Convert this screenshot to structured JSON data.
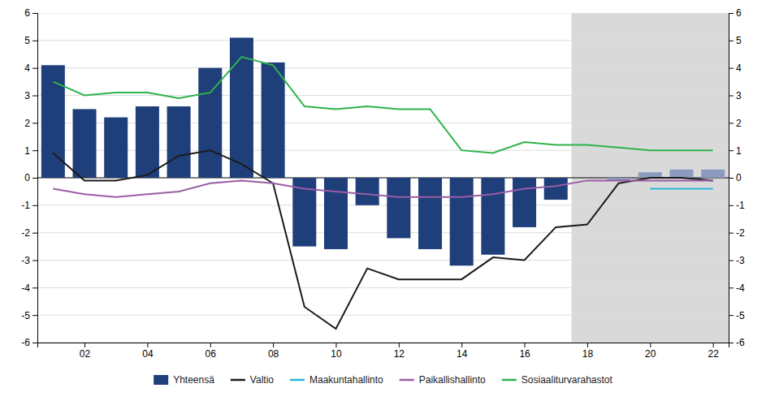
{
  "chart_data": {
    "type": "bar",
    "x": [
      2001,
      2002,
      2003,
      2004,
      2005,
      2006,
      2007,
      2008,
      2009,
      2010,
      2011,
      2012,
      2013,
      2014,
      2015,
      2016,
      2017,
      2018,
      2019,
      2020,
      2021,
      2022
    ],
    "xlim": [
      2000.5,
      2022.5
    ],
    "xticks": [
      {
        "value": 2002,
        "label": "02"
      },
      {
        "value": 2004,
        "label": "04"
      },
      {
        "value": 2006,
        "label": "06"
      },
      {
        "value": 2008,
        "label": "08"
      },
      {
        "value": 2010,
        "label": "10"
      },
      {
        "value": 2012,
        "label": "12"
      },
      {
        "value": 2014,
        "label": "14"
      },
      {
        "value": 2016,
        "label": "16"
      },
      {
        "value": 2018,
        "label": "18"
      },
      {
        "value": 2020,
        "label": "20"
      },
      {
        "value": 2022,
        "label": "22"
      }
    ],
    "ylim": [
      -6,
      6
    ],
    "yticks": [
      -6,
      -5,
      -4,
      -3,
      -2,
      -1,
      0,
      1,
      2,
      3,
      4,
      5,
      6
    ],
    "y2lim": [
      -6,
      6
    ],
    "y2ticks": [
      -6,
      -5,
      -4,
      -3,
      -2,
      -1,
      0,
      1,
      2,
      3,
      4,
      5,
      6
    ],
    "grid": true,
    "legend": "bottom",
    "span": {
      "x": [
        2017.5,
        2022.5
      ],
      "color": "#d9d9d9"
    },
    "series": [
      {
        "name": "Yhteensä",
        "type": "bar",
        "color": "#1f3f7a",
        "colors": [
          "#1f3f7a",
          "#1f3f7a",
          "#1f3f7a",
          "#1f3f7a",
          "#1f3f7a",
          "#1f3f7a",
          "#1f3f7a",
          "#1f3f7a",
          "#1f3f7a",
          "#1f3f7a",
          "#1f3f7a",
          "#1f3f7a",
          "#1f3f7a",
          "#1f3f7a",
          "#1f3f7a",
          "#1f3f7a",
          "#1f3f7a",
          "#8a9bbf",
          "#8a9bbf",
          "#8a9bbf",
          "#8a9bbf",
          "#8a9bbf"
        ],
        "values": [
          4.1,
          2.5,
          2.2,
          2.6,
          2.6,
          4.0,
          5.1,
          4.2,
          -2.5,
          -2.6,
          -1.0,
          -2.2,
          -2.6,
          -3.2,
          -2.8,
          -1.8,
          -0.8,
          0.0,
          -0.1,
          0.2,
          0.3,
          0.3
        ]
      },
      {
        "name": "Valtio",
        "type": "line",
        "color": "#1a1a1a",
        "values": [
          0.9,
          -0.1,
          -0.1,
          0.1,
          0.8,
          1.0,
          0.5,
          -0.2,
          -4.7,
          -5.5,
          -3.3,
          -3.7,
          -3.7,
          -3.7,
          -2.9,
          -3.0,
          -1.8,
          -1.7,
          -0.2,
          0.0,
          0.0,
          -0.1
        ]
      },
      {
        "name": "Maakuntahallinto",
        "type": "line",
        "color": "#29b6d8",
        "values": [
          null,
          null,
          null,
          null,
          null,
          null,
          null,
          null,
          null,
          null,
          null,
          null,
          null,
          null,
          null,
          null,
          null,
          null,
          null,
          -0.4,
          -0.4,
          -0.4
        ]
      },
      {
        "name": "Paikallishallinto",
        "type": "line",
        "color": "#9b5ca5",
        "values": [
          -0.4,
          -0.6,
          -0.7,
          -0.6,
          -0.5,
          -0.2,
          -0.1,
          -0.2,
          -0.4,
          -0.5,
          -0.6,
          -0.7,
          -0.7,
          -0.7,
          -0.6,
          -0.4,
          -0.3,
          -0.1,
          -0.1,
          -0.1,
          -0.1,
          -0.1
        ]
      },
      {
        "name": "Sosiaaliturvarahastot",
        "type": "line",
        "color": "#2db34a",
        "values": [
          3.5,
          3.0,
          3.1,
          3.1,
          2.9,
          3.1,
          4.4,
          4.1,
          2.6,
          2.5,
          2.6,
          2.5,
          2.5,
          1.0,
          0.9,
          1.3,
          1.2,
          1.2,
          1.1,
          1.0,
          1.0,
          1.0
        ]
      }
    ]
  }
}
